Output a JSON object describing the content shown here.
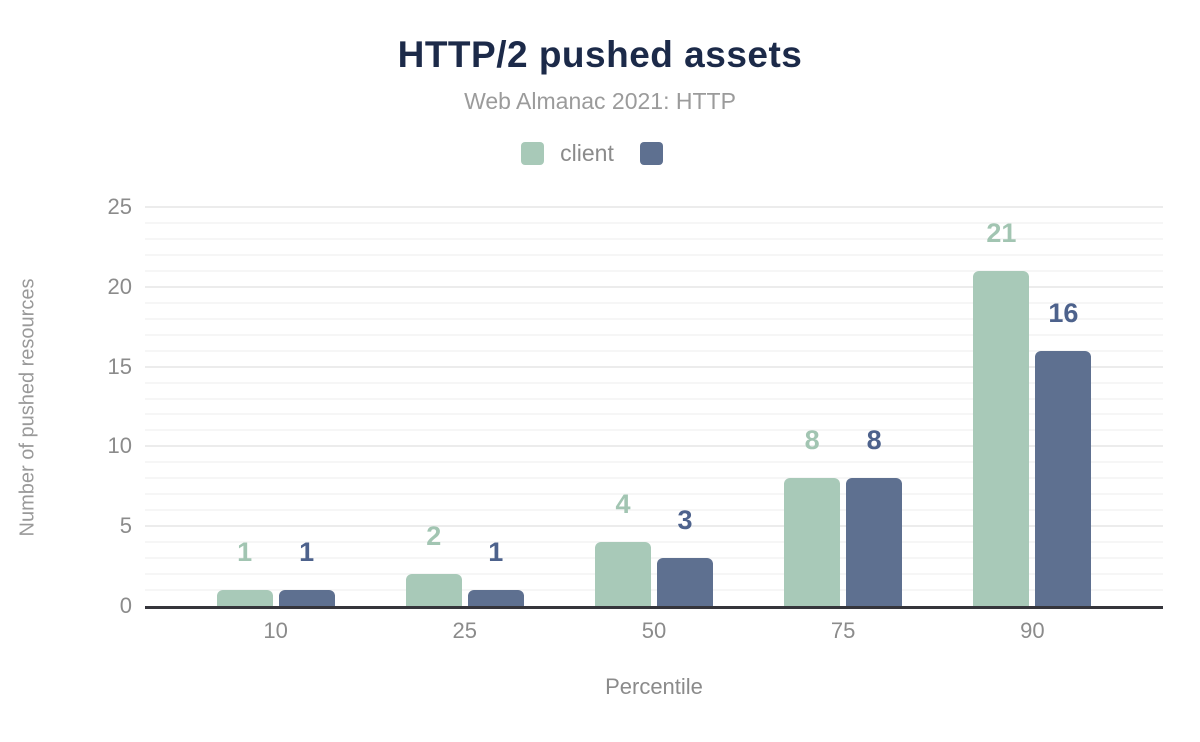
{
  "chart_data": {
    "type": "bar",
    "title": "HTTP/2 pushed assets",
    "subtitle": "Web Almanac 2021: HTTP",
    "xlabel": "Percentile",
    "ylabel": "Number of pushed resources",
    "categories": [
      "10",
      "25",
      "50",
      "75",
      "90"
    ],
    "series": [
      {
        "name": "client",
        "color": "#a8c9b8",
        "label_color": "#a2c5b2",
        "values": [
          1,
          2,
          4,
          8,
          21
        ]
      },
      {
        "name": "",
        "color": "#5e7090",
        "label_color": "#4d628c",
        "values": [
          1,
          1,
          3,
          8,
          16
        ]
      }
    ],
    "ylim": [
      0,
      25
    ],
    "yticks": [
      0,
      5,
      10,
      15,
      20,
      25
    ],
    "grid": {
      "minor_step": 1,
      "major_step": 5,
      "minor_color": "#f6f6f6",
      "major_color": "#ececec"
    },
    "legend_position": "top",
    "colors": {
      "title": "#1c2a49",
      "subtitle": "#9b9b9b",
      "tick_label": "#8b8b8b",
      "axis_line": "#35353b",
      "legend_text": "#8b8b8b",
      "y_axis_title": "#999999"
    }
  }
}
